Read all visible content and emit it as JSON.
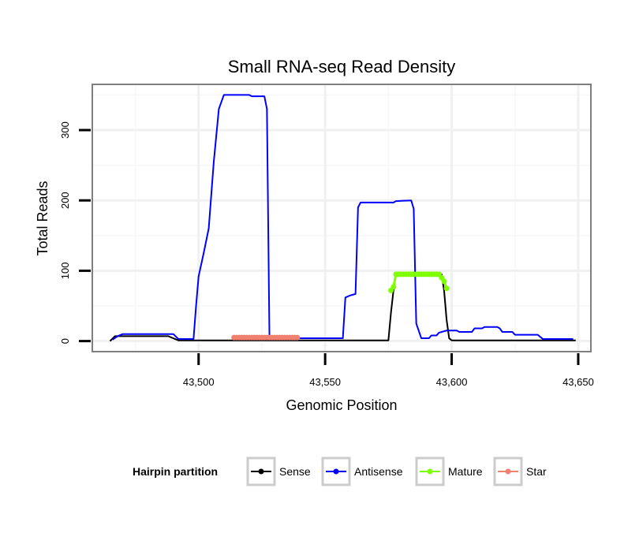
{
  "chart_data": {
    "type": "line",
    "title": "Small RNA-seq Read Density",
    "xlabel": "Genomic Position",
    "ylabel": "Total Reads",
    "xlim": [
      43458,
      43655
    ],
    "ylim": [
      -15,
      365
    ],
    "xticks": [
      43500,
      43550,
      43600,
      43650
    ],
    "xtick_labels": [
      "43,500",
      "43,550",
      "43,600",
      "43,650"
    ],
    "yticks": [
      0,
      100,
      200,
      300
    ],
    "ytick_labels": [
      "0",
      "100",
      "200",
      "300"
    ],
    "grid": true,
    "legend": {
      "title": "Hairpin partition",
      "position": "bottom",
      "entries": [
        "Sense",
        "Antisense",
        "Mature",
        "Star"
      ]
    },
    "series": [
      {
        "name": "Sense",
        "color": "#000000",
        "markers": false,
        "points": [
          [
            43465,
            0
          ],
          [
            43467,
            7
          ],
          [
            43488,
            7
          ],
          [
            43490,
            4
          ],
          [
            43492,
            1
          ],
          [
            43575,
            1
          ],
          [
            43576,
            40
          ],
          [
            43577,
            72
          ],
          [
            43578,
            95
          ],
          [
            43596,
            95
          ],
          [
            43597,
            72
          ],
          [
            43598,
            30
          ],
          [
            43599,
            4
          ],
          [
            43600,
            1
          ],
          [
            43649,
            1
          ]
        ]
      },
      {
        "name": "Antisense",
        "color": "#0000FF",
        "markers": false,
        "points": [
          [
            43466,
            2
          ],
          [
            43468,
            7
          ],
          [
            43470,
            10
          ],
          [
            43490,
            10
          ],
          [
            43492,
            3
          ],
          [
            43498,
            3
          ],
          [
            43499,
            50
          ],
          [
            43500,
            92
          ],
          [
            43502,
            125
          ],
          [
            43504,
            160
          ],
          [
            43506,
            255
          ],
          [
            43508,
            330
          ],
          [
            43510,
            350
          ],
          [
            43520,
            350
          ],
          [
            43521,
            348
          ],
          [
            43526,
            348
          ],
          [
            43527,
            330
          ],
          [
            43528,
            4
          ],
          [
            43557,
            4
          ],
          [
            43558,
            62
          ],
          [
            43560,
            65
          ],
          [
            43562,
            67
          ],
          [
            43563,
            190
          ],
          [
            43564,
            197
          ],
          [
            43577,
            197
          ],
          [
            43578,
            199
          ],
          [
            43584,
            200
          ],
          [
            43585,
            188
          ],
          [
            43586,
            25
          ],
          [
            43588,
            4
          ],
          [
            43591,
            4
          ],
          [
            43592,
            8
          ],
          [
            43594,
            8
          ],
          [
            43595,
            12
          ],
          [
            43598,
            15
          ],
          [
            43602,
            15
          ],
          [
            43603,
            13
          ],
          [
            43608,
            13
          ],
          [
            43609,
            18
          ],
          [
            43612,
            18
          ],
          [
            43613,
            20
          ],
          [
            43618,
            20
          ],
          [
            43619,
            18
          ],
          [
            43620,
            13
          ],
          [
            43624,
            13
          ],
          [
            43625,
            9
          ],
          [
            43634,
            9
          ],
          [
            43636,
            3
          ],
          [
            43648,
            3
          ]
        ]
      },
      {
        "name": "Mature",
        "color": "#7FFF00",
        "markers": true,
        "points": [
          [
            43576,
            72
          ],
          [
            43577,
            77
          ],
          [
            43578,
            95
          ],
          [
            43579,
            95
          ],
          [
            43580,
            95
          ],
          [
            43581,
            95
          ],
          [
            43582,
            95
          ],
          [
            43583,
            95
          ],
          [
            43584,
            95
          ],
          [
            43585,
            95
          ],
          [
            43586,
            95
          ],
          [
            43587,
            95
          ],
          [
            43588,
            95
          ],
          [
            43589,
            95
          ],
          [
            43590,
            95
          ],
          [
            43591,
            95
          ],
          [
            43592,
            95
          ],
          [
            43593,
            95
          ],
          [
            43594,
            95
          ],
          [
            43595,
            95
          ],
          [
            43596,
            90
          ],
          [
            43597,
            85
          ],
          [
            43598,
            75
          ]
        ]
      },
      {
        "name": "Star",
        "color": "#F08070",
        "markers": true,
        "points": [
          [
            43514,
            5
          ],
          [
            43515,
            5
          ],
          [
            43516,
            5
          ],
          [
            43517,
            5
          ],
          [
            43518,
            5
          ],
          [
            43519,
            5
          ],
          [
            43520,
            5
          ],
          [
            43521,
            5
          ],
          [
            43522,
            5
          ],
          [
            43523,
            5
          ],
          [
            43524,
            5
          ],
          [
            43525,
            5
          ],
          [
            43526,
            5
          ],
          [
            43527,
            5
          ],
          [
            43528,
            5
          ],
          [
            43529,
            5
          ],
          [
            43530,
            5
          ],
          [
            43531,
            5
          ],
          [
            43532,
            5
          ],
          [
            43533,
            5
          ],
          [
            43534,
            5
          ],
          [
            43535,
            5
          ],
          [
            43536,
            5
          ],
          [
            43537,
            5
          ],
          [
            43538,
            5
          ],
          [
            43539,
            5
          ]
        ]
      }
    ]
  }
}
